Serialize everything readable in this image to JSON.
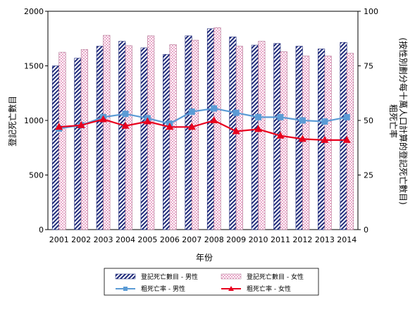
{
  "chart_data": {
    "type": "bar",
    "categories": [
      "2001",
      "2002",
      "2003",
      "2004",
      "2005",
      "2006",
      "2007",
      "2008",
      "2009",
      "2010",
      "2011",
      "2012",
      "2013",
      "2014"
    ],
    "xlabel": "年份",
    "ylabel_left": "登記死亡數目",
    "ylabel_right_line1": "粗死亡率",
    "ylabel_right_line2": "(按性別劃分每十萬人口計算的登記死亡數目)",
    "ylim_left": [
      0,
      2000
    ],
    "ylim_right": [
      0,
      100
    ],
    "yticks_left": [
      0,
      500,
      1000,
      1500,
      2000
    ],
    "yticks_right": [
      0,
      25,
      50,
      75,
      100
    ],
    "series": [
      {
        "name": "登記死亡數目 - 男性",
        "kind": "bar",
        "axis": "left",
        "pattern": "diagonal-navy",
        "color": "#1f2a7a",
        "values": [
          1500,
          1570,
          1680,
          1725,
          1665,
          1605,
          1775,
          1840,
          1765,
          1690,
          1705,
          1680,
          1655,
          1715
        ]
      },
      {
        "name": "登記死亡數目 - 女性",
        "kind": "bar",
        "axis": "left",
        "pattern": "pink-check",
        "color": "#e8a7c8",
        "values": [
          1625,
          1650,
          1780,
          1685,
          1775,
          1695,
          1735,
          1850,
          1680,
          1725,
          1630,
          1590,
          1590,
          1615
        ]
      },
      {
        "name": "粗死亡率 - 男性",
        "kind": "line",
        "axis": "right",
        "marker": "square",
        "color": "#5b9bd5",
        "values": [
          46.3,
          47.8,
          51.5,
          53.0,
          51.0,
          48.5,
          54.0,
          55.5,
          53.5,
          51.5,
          51.5,
          50.0,
          49.5,
          51.5
        ]
      },
      {
        "name": "粗死亡率 - 女性",
        "kind": "line",
        "axis": "right",
        "marker": "triangle",
        "color": "#e8001e",
        "values": [
          47.0,
          47.8,
          50.5,
          47.5,
          49.5,
          47.0,
          47.0,
          50.0,
          45.0,
          46.0,
          43.0,
          41.5,
          41.0,
          41.0
        ]
      }
    ]
  }
}
